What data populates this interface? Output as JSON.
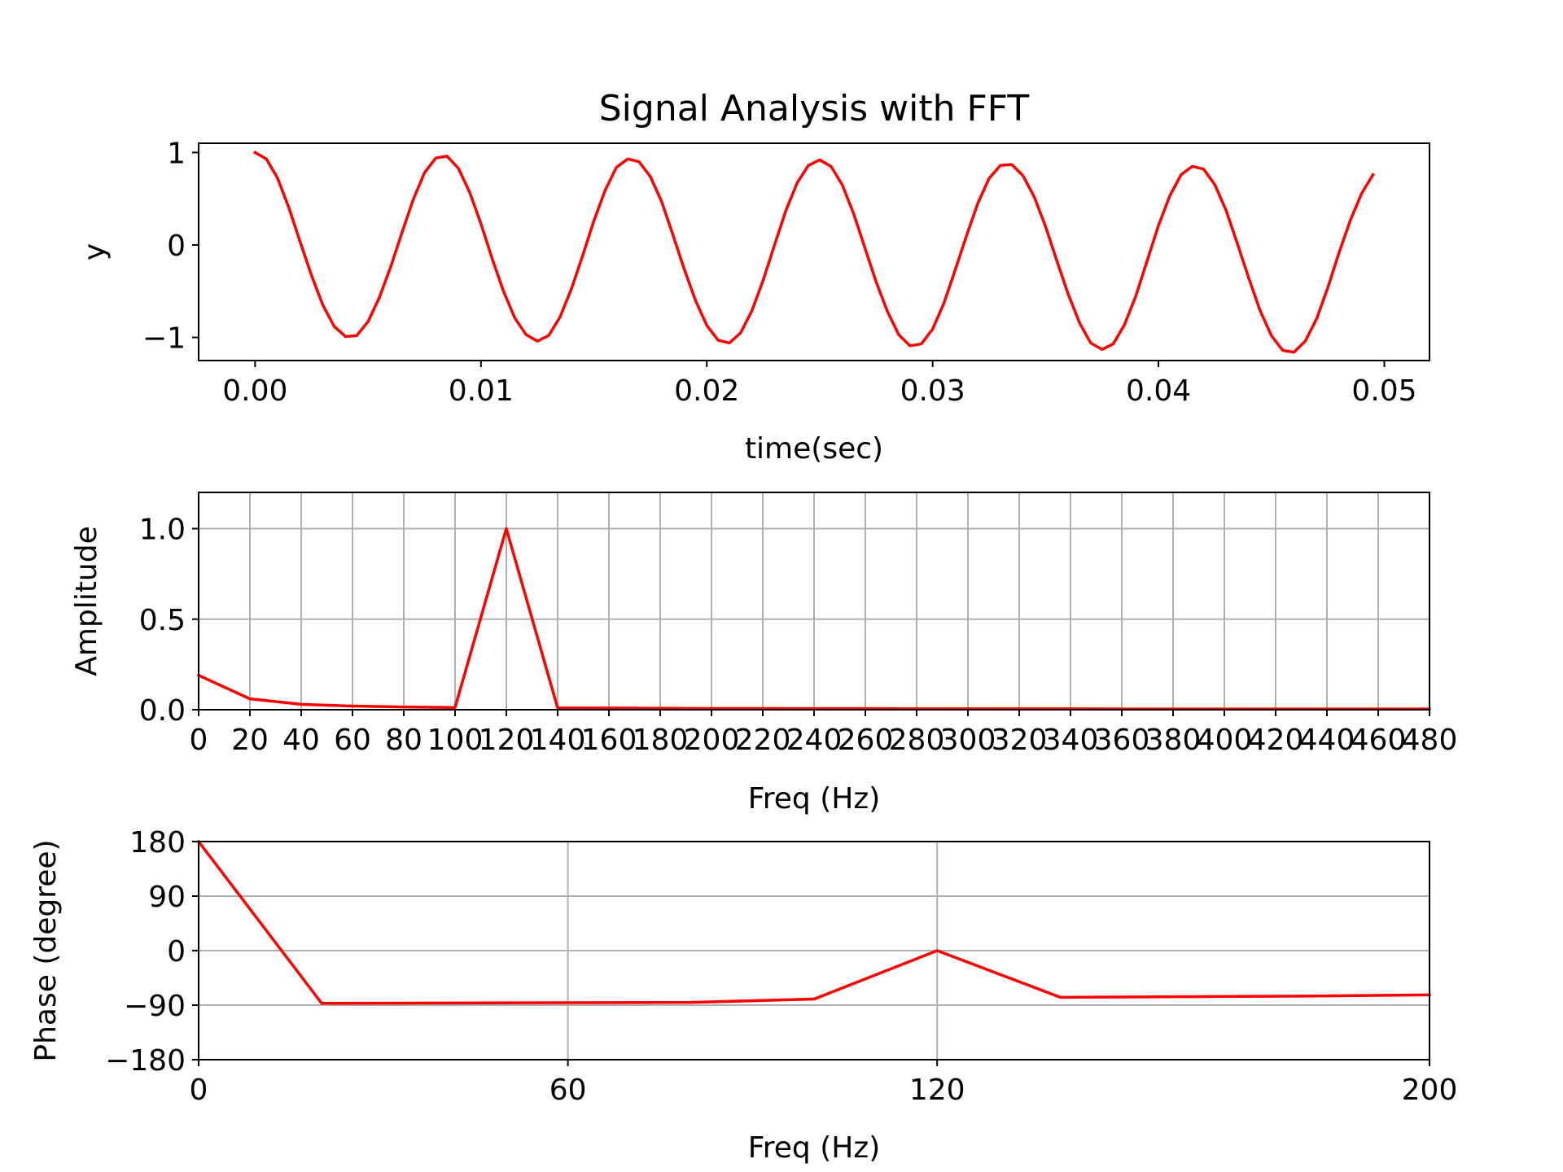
{
  "chart_data": [
    {
      "type": "line",
      "title": "Signal Analysis with FFT",
      "xlabel": "time(sec)",
      "ylabel": "y",
      "xlim": [
        -0.0025,
        0.052
      ],
      "ylim": [
        -1.25,
        1.1
      ],
      "grid": false,
      "xticks": [
        0,
        0.01,
        0.02,
        0.03,
        0.04,
        0.05
      ],
      "xtick_labels": [
        "0.00",
        "0.01",
        "0.02",
        "0.03",
        "0.04",
        "0.05"
      ],
      "yticks": [
        1,
        0,
        -1
      ],
      "ytick_labels": [
        "1",
        "0",
        "−1"
      ],
      "color": "#ff0000",
      "series": [
        {
          "x": [
            0,
            0.0005,
            0.001,
            0.0015,
            0.002,
            0.0025,
            0.003,
            0.0035,
            0.004,
            0.0045,
            0.005,
            0.0055,
            0.006,
            0.0065,
            0.007,
            0.0075,
            0.008,
            0.0085,
            0.009,
            0.0095,
            0.01,
            0.0105,
            0.011,
            0.0115,
            0.012,
            0.0125,
            0.013,
            0.0135,
            0.014,
            0.0145,
            0.015,
            0.0155,
            0.016,
            0.0165,
            0.017,
            0.0175,
            0.018,
            0.0185,
            0.019,
            0.0195,
            0.02,
            0.0205,
            0.021,
            0.0215,
            0.022,
            0.0225,
            0.023,
            0.0235,
            0.024,
            0.0245,
            0.025,
            0.0255,
            0.026,
            0.0265,
            0.027,
            0.0275,
            0.028,
            0.0285,
            0.029,
            0.0295,
            0.03,
            0.0305,
            0.031,
            0.0315,
            0.032,
            0.0325,
            0.033,
            0.0335,
            0.034,
            0.0345,
            0.035,
            0.0355,
            0.036,
            0.0365,
            0.037,
            0.0375,
            0.038,
            0.0385,
            0.039,
            0.0395,
            0.04,
            0.0405,
            0.041,
            0.0415,
            0.042,
            0.0425,
            0.043,
            0.0435,
            0.044,
            0.0445,
            0.045,
            0.0455,
            0.046,
            0.0465,
            0.047,
            0.0475,
            0.048,
            0.0485,
            0.049,
            0.0495
          ],
          "y": [
            1.0,
            0.93,
            0.72,
            0.4,
            0.03,
            -0.33,
            -0.65,
            -0.88,
            -0.99,
            -0.98,
            -0.83,
            -0.57,
            -0.24,
            0.13,
            0.49,
            0.78,
            0.94,
            0.96,
            0.83,
            0.57,
            0.23,
            -0.15,
            -0.5,
            -0.79,
            -0.97,
            -1.04,
            -0.98,
            -0.78,
            -0.48,
            -0.12,
            0.26,
            0.59,
            0.84,
            0.93,
            0.9,
            0.74,
            0.47,
            0.11,
            -0.26,
            -0.6,
            -0.87,
            -1.03,
            -1.06,
            -0.95,
            -0.71,
            -0.38,
            0.0,
            0.37,
            0.67,
            0.86,
            0.92,
            0.85,
            0.65,
            0.34,
            -0.03,
            -0.4,
            -0.72,
            -0.97,
            -1.09,
            -1.07,
            -0.91,
            -0.63,
            -0.27,
            0.1,
            0.45,
            0.72,
            0.86,
            0.87,
            0.75,
            0.52,
            0.2,
            -0.17,
            -0.53,
            -0.84,
            -1.06,
            -1.13,
            -1.07,
            -0.86,
            -0.55,
            -0.17,
            0.21,
            0.53,
            0.76,
            0.85,
            0.82,
            0.65,
            0.37,
            0.01,
            -0.36,
            -0.71,
            -0.98,
            -1.14,
            -1.16,
            -1.04,
            -0.8,
            -0.46,
            -0.08,
            0.27,
            0.56,
            0.76
          ]
        }
      ]
    },
    {
      "type": "line",
      "xlabel": "Freq (Hz)",
      "ylabel": "Amplitude",
      "xlim": [
        0,
        480
      ],
      "ylim": [
        0,
        1.2
      ],
      "grid": true,
      "xticks": [
        0,
        20,
        40,
        60,
        80,
        100,
        120,
        140,
        160,
        180,
        200,
        220,
        240,
        260,
        280,
        300,
        320,
        340,
        360,
        380,
        400,
        420,
        440,
        460,
        480
      ],
      "xtick_labels": [
        "0",
        "20",
        "40",
        "60",
        "80",
        "100",
        "120",
        "140",
        "160",
        "180",
        "200",
        "220",
        "240",
        "260",
        "280",
        "300",
        "320",
        "340",
        "360",
        "380",
        "400",
        "420",
        "440",
        "460",
        "480"
      ],
      "yticks": [
        0,
        0.5,
        1.0
      ],
      "ytick_labels": [
        "0.0",
        "0.5",
        "1.0"
      ],
      "color": "#ff0000",
      "series": [
        {
          "x": [
            0,
            20,
            40,
            60,
            80,
            100,
            120,
            140,
            160,
            180,
            200,
            220,
            240,
            260,
            280,
            300,
            320,
            340,
            360,
            380,
            400,
            420,
            440,
            460,
            480
          ],
          "y": [
            0.19,
            0.06,
            0.03,
            0.02,
            0.015,
            0.012,
            1.0,
            0.01,
            0.009,
            0.008,
            0.007,
            0.007,
            0.006,
            0.006,
            0.005,
            0.005,
            0.005,
            0.005,
            0.004,
            0.004,
            0.004,
            0.004,
            0.004,
            0.004,
            0.004
          ]
        }
      ]
    },
    {
      "type": "line",
      "xlabel": "Freq (Hz)",
      "ylabel": "Phase (degree)",
      "xlim": [
        0,
        200
      ],
      "ylim": [
        -180,
        180
      ],
      "grid": true,
      "xticks": [
        0,
        60,
        120,
        200
      ],
      "xtick_labels": [
        "0",
        "60",
        "120",
        "200"
      ],
      "yticks": [
        180,
        90,
        0,
        -90,
        -180
      ],
      "ytick_labels": [
        "180",
        "90",
        "0",
        "−90",
        "−180"
      ],
      "color": "#ff0000",
      "series": [
        {
          "x": [
            0,
            20,
            40,
            60,
            80,
            100,
            120,
            140,
            160,
            180,
            200
          ],
          "y": [
            180,
            -87,
            -86.5,
            -86,
            -85.5,
            -80,
            0,
            -77,
            -76,
            -75,
            -73
          ]
        }
      ]
    }
  ]
}
